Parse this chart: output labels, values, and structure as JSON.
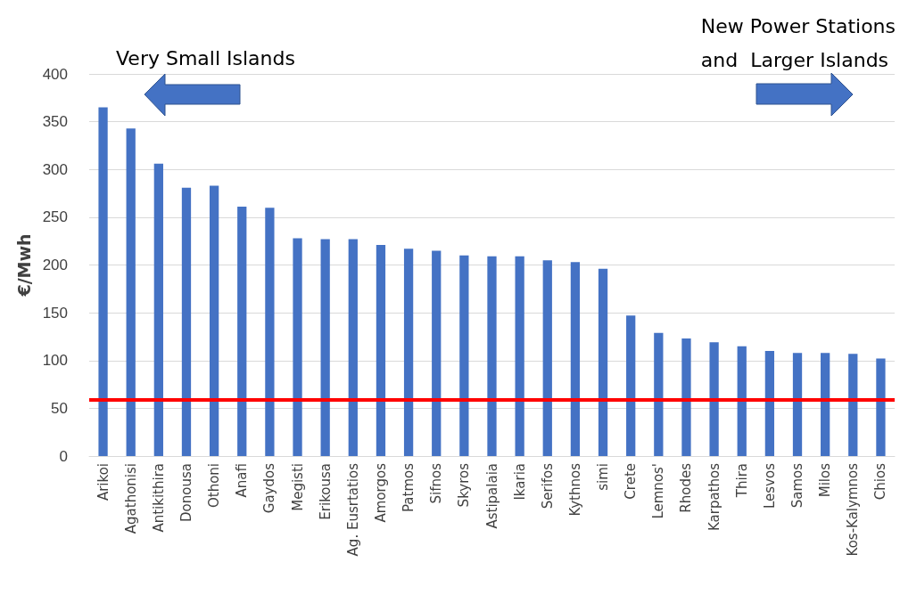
{
  "chart_data": {
    "type": "bar",
    "categories": [
      "Arikoi",
      "Agathonisi",
      "Antikithira",
      "Donousa",
      "Othoni",
      "Anafi",
      "Gaydos",
      "Megisti",
      "Erikousa",
      "Ag. Eusrtatios",
      "Amorgos",
      "Patmos",
      "Sifnos",
      "Skyros",
      "Astipalaia",
      "Ikaria",
      "Serifos",
      "Kythnos",
      "simi",
      "Crete",
      "Lemnos'",
      "Rhodes",
      "Karpathos",
      "Thira",
      "Lesvos",
      "Samos",
      "Milos",
      "Kos-Kalymnos",
      "Chios"
    ],
    "values": [
      365,
      343,
      306,
      281,
      283,
      261,
      260,
      228,
      227,
      227,
      221,
      217,
      215,
      210,
      209,
      209,
      205,
      203,
      196,
      147,
      129,
      123,
      119,
      115,
      110,
      108,
      108,
      107,
      102
    ],
    "color": "#4472c4",
    "ylabel": "€/Mwh",
    "ylim": [
      0,
      400
    ],
    "yticks": [
      0,
      50,
      100,
      150,
      200,
      250,
      300,
      350,
      400
    ],
    "grid": "y",
    "ref_lines": [
      {
        "axis": "y",
        "value": 59,
        "color": "#ff0000"
      }
    ],
    "annotations": [
      "Very Small Islands",
      "New Power Stations\nand  Larger Islands"
    ]
  }
}
